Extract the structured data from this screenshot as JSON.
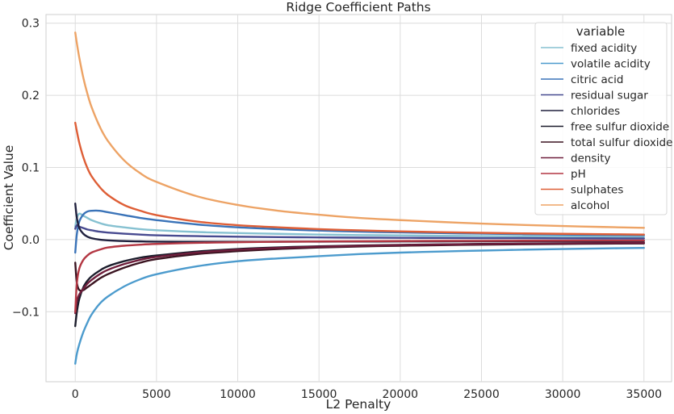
{
  "chart_data": {
    "type": "line",
    "title": "Ridge Coefficient Paths",
    "xlabel": "L2 Penalty",
    "ylabel": "Coefficient Value",
    "xlim": [
      -1800,
      36700
    ],
    "ylim": [
      -0.197,
      0.312
    ],
    "xticks": [
      0,
      5000,
      10000,
      15000,
      20000,
      25000,
      30000,
      35000
    ],
    "xtick_labels": [
      "0",
      "5000",
      "10000",
      "15000",
      "20000",
      "25000",
      "30000",
      "35000"
    ],
    "yticks": [
      -0.1,
      0.0,
      0.1,
      0.2,
      0.3
    ],
    "ytick_labels": [
      "−0.1",
      "0.0",
      "0.1",
      "0.2",
      "0.3"
    ],
    "grid": true,
    "legend": {
      "title": "variable",
      "placement": "top-right"
    },
    "x": [
      0,
      100,
      250,
      500,
      750,
      1000,
      1500,
      2000,
      3000,
      4000,
      5000,
      7500,
      10000,
      12500,
      15000,
      17500,
      20000,
      22500,
      25000,
      27500,
      30000,
      32500,
      35000
    ],
    "series": [
      {
        "name": "fixed acidity",
        "color": "#86c1d1",
        "values": [
          0.018,
          0.03,
          0.036,
          0.033,
          0.03,
          0.027,
          0.023,
          0.02,
          0.017,
          0.0145,
          0.013,
          0.0105,
          0.009,
          0.008,
          0.007,
          0.0063,
          0.0058,
          0.0053,
          0.0049,
          0.0046,
          0.0043,
          0.0041,
          0.0039
        ]
      },
      {
        "name": "volatile acidity",
        "color": "#4c9bcd",
        "values": [
          -0.172,
          -0.158,
          -0.145,
          -0.128,
          -0.115,
          -0.104,
          -0.089,
          -0.079,
          -0.065,
          -0.055,
          -0.048,
          -0.037,
          -0.03,
          -0.026,
          -0.023,
          -0.02,
          -0.018,
          -0.0165,
          -0.0152,
          -0.014,
          -0.013,
          -0.0122,
          -0.0115
        ]
      },
      {
        "name": "citric acid",
        "color": "#3a73b8",
        "values": [
          -0.018,
          0.008,
          0.025,
          0.035,
          0.039,
          0.04,
          0.04,
          0.038,
          0.034,
          0.03,
          0.027,
          0.021,
          0.017,
          0.0145,
          0.0125,
          0.011,
          0.01,
          0.009,
          0.0083,
          0.0076,
          0.007,
          0.0065,
          0.0061
        ]
      },
      {
        "name": "residual sugar",
        "color": "#474a90",
        "values": [
          0.015,
          0.02,
          0.018,
          0.016,
          0.014,
          0.013,
          0.011,
          0.0098,
          0.0082,
          0.007,
          0.006,
          0.0048,
          0.004,
          0.0035,
          0.003,
          0.0027,
          0.0025,
          0.0023,
          0.0021,
          0.002,
          0.0018,
          0.0017,
          0.0016
        ]
      },
      {
        "name": "chlorides",
        "color": "#20213e",
        "values": [
          0.05,
          0.03,
          0.016,
          0.008,
          0.004,
          0.002,
          0.0,
          -0.001,
          -0.002,
          -0.0025,
          -0.0028,
          -0.003,
          -0.003,
          -0.0029,
          -0.0028,
          -0.0027,
          -0.0026,
          -0.0025,
          -0.0024,
          -0.0023,
          -0.0022,
          -0.0021,
          -0.002
        ]
      },
      {
        "name": "free sulfur dioxide",
        "color": "#1b1c2b",
        "values": [
          -0.12,
          -0.1,
          -0.082,
          -0.066,
          -0.057,
          -0.051,
          -0.043,
          -0.037,
          -0.03,
          -0.025,
          -0.022,
          -0.0165,
          -0.013,
          -0.0108,
          -0.0093,
          -0.0082,
          -0.0073,
          -0.0066,
          -0.006,
          -0.0055,
          -0.0051,
          -0.0048,
          -0.0045
        ]
      },
      {
        "name": "total sulfur dioxide",
        "color": "#3b1421",
        "values": [
          -0.032,
          -0.06,
          -0.07,
          -0.07,
          -0.066,
          -0.062,
          -0.054,
          -0.048,
          -0.039,
          -0.032,
          -0.027,
          -0.02,
          -0.016,
          -0.013,
          -0.011,
          -0.0095,
          -0.0085,
          -0.0077,
          -0.007,
          -0.0065,
          -0.006,
          -0.0056,
          -0.0053
        ]
      },
      {
        "name": "density",
        "color": "#6e1d3b",
        "values": [
          -0.102,
          -0.085,
          -0.076,
          -0.068,
          -0.061,
          -0.056,
          -0.048,
          -0.042,
          -0.034,
          -0.028,
          -0.024,
          -0.018,
          -0.014,
          -0.0115,
          -0.0098,
          -0.0086,
          -0.0076,
          -0.0069,
          -0.0062,
          -0.0057,
          -0.0053,
          -0.0049,
          -0.0046
        ]
      },
      {
        "name": "pH",
        "color": "#b33743",
        "values": [
          -0.1,
          -0.06,
          -0.04,
          -0.028,
          -0.022,
          -0.018,
          -0.014,
          -0.011,
          -0.0085,
          -0.007,
          -0.006,
          -0.0045,
          -0.0036,
          -0.003,
          -0.0026,
          -0.0023,
          -0.002,
          -0.0018,
          -0.0017,
          -0.0015,
          -0.0014,
          -0.0013,
          -0.0012
        ]
      },
      {
        "name": "sulphates",
        "color": "#de5e36",
        "values": [
          0.162,
          0.15,
          0.134,
          0.114,
          0.099,
          0.088,
          0.073,
          0.062,
          0.048,
          0.04,
          0.034,
          0.025,
          0.02,
          0.017,
          0.0145,
          0.0128,
          0.0114,
          0.0103,
          0.0094,
          0.0086,
          0.008,
          0.0075,
          0.007
        ]
      },
      {
        "name": "alcohol",
        "color": "#eda365",
        "values": [
          0.287,
          0.272,
          0.252,
          0.224,
          0.202,
          0.184,
          0.157,
          0.137,
          0.11,
          0.092,
          0.08,
          0.06,
          0.048,
          0.04,
          0.0345,
          0.03,
          0.027,
          0.0245,
          0.0222,
          0.0204,
          0.0188,
          0.0175,
          0.0163
        ]
      }
    ]
  }
}
